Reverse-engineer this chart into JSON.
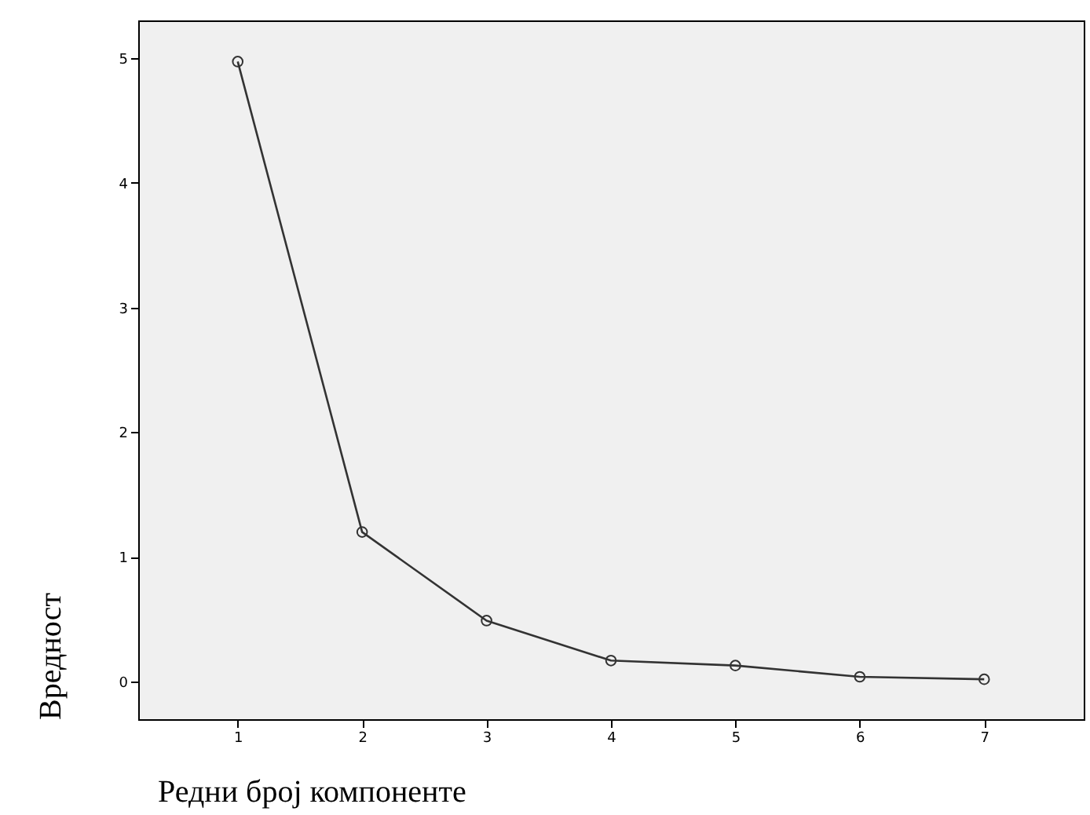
{
  "chart_data": {
    "type": "line",
    "xlabel": "Редни број компоненте",
    "ylabel": "Вредност",
    "categories": [
      "1",
      "2",
      "3",
      "4",
      "5",
      "6",
      "7"
    ],
    "series": [
      {
        "color": "#333333",
        "values": [
          4.97,
          1.2,
          0.49,
          0.17,
          0.13,
          0.04,
          0.02
        ]
      }
    ],
    "ylim": [
      -0.3,
      5.3
    ],
    "yticks": [
      0,
      1,
      2,
      3,
      4,
      5
    ],
    "grid": false,
    "marker": "circle",
    "line_style": "solid"
  }
}
